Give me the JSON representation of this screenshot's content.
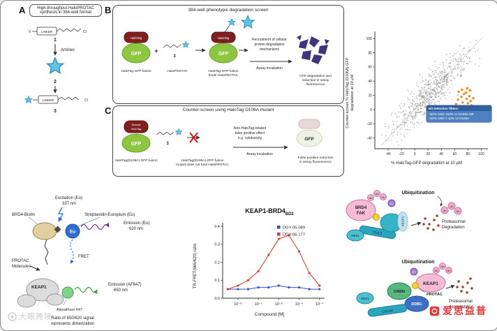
{
  "colors": {
    "gfp_green": "#8dc63f",
    "halotag_red": "#7f1f1f",
    "star_blue": "#5fc4e8",
    "hit_orange": "#f08a1d",
    "accent_blue": "#2a6fd6",
    "emission_purple": "#7b2d8e",
    "emission_green": "#2e9e44",
    "pink": "#f5bcd3",
    "teal": "#35b4c8",
    "protac_yellow": "#f7d02e",
    "degraded_purple": "#3d3580"
  },
  "watermark": {
    "left_text": "大眼跨境",
    "right_text": "爱思益普"
  },
  "panelA": {
    "label": "A",
    "title_line1": "High-throughput HaloPROTAC",
    "title_line2": "synthesis in 384-well format",
    "x_label": "X",
    "linker": "LINKER",
    "cl": "Cl",
    "compound1": "1",
    "amines": "Amines",
    "compound2": "2",
    "compound3": "3"
  },
  "panelB": {
    "label": "B",
    "title": "384-well phenotypic degradation screen",
    "halotag": "HaloTag",
    "gfp": "GFP",
    "caption1": "HaloTag-GFP fusion",
    "plus": "+",
    "compound3": "3",
    "caption2": "HaloPROTAC",
    "caption3_line1": "HaloTag-GFP fusion",
    "caption3_line2": "binds HaloPROTAC",
    "recruit_line1": "Recruitment of cellular",
    "recruit_line2": "protein degradation",
    "recruit_line3": "mechanisms",
    "assay": "Assay incubation",
    "result_line1": "GFP degradation and",
    "result_line2": "reduction in assay",
    "result_line3": "fluorescence"
  },
  "panelC": {
    "label": "C",
    "title": "Counter-screen using HaloTag D106A mutant",
    "mutant_line1": "Mutant",
    "mutant_line2": "HaloTag",
    "gfp": "GFP",
    "caption1": "HaloTag(D106A)-GFP fusion",
    "compound3": "3",
    "caption2_line1": "HaloTag(D106A)-GFP fusion",
    "caption2_line2": "mutant does not bind HaloPROTAC",
    "fp_line1": "Non-HaloTag-related",
    "fp_line2": "false positive effect",
    "fp_line3": "e.g. cytotoxicity",
    "assay": "Assay incubation",
    "result_line1": "False positive reduction",
    "result_line2": "in assay fluorescence"
  },
  "fret": {
    "excitation_line1": "Excitation (Eu)",
    "excitation_line2": "337 nm",
    "brd4_biotin": "BRD4-Biotin",
    "streptavidin": "Streptavidin-Europium (Eu)",
    "eu": "Eu",
    "emission_eu_line1": "Emission (Eu)",
    "emission_eu_line2": "620 nm",
    "fret": "FRET",
    "protac_line1": "PROTAC",
    "protac_line2": "Molecules",
    "keap1": "KEAP1",
    "af647": "AlexaFluor 647",
    "emission_af_line1": "Emission (AF647)",
    "emission_af_line2": "650 nm",
    "caption_line1": "Ratio of 650/620 signal",
    "caption_line2": "represents dimerization"
  },
  "ubiq": {
    "top": {
      "heading": "Ubiquitination",
      "ub": "Ub",
      "target_line1": "BRD4",
      "target_line2": "FAK",
      "protac": "PROTAC",
      "e2": "E2",
      "keap1": "KEAP1",
      "cul3": "CUL3",
      "rbx1": "RBX1",
      "deg_line1": "Proteasomal",
      "deg_line2": "Degradation"
    },
    "bottom": {
      "heading": "Ubiquitination",
      "ub": "Ub",
      "target": "KEAP1",
      "protac": "PROTAC",
      "e2": "E2",
      "crbn": "CRBN",
      "ddb1": "DDB1",
      "cul4a": "CUL4A",
      "rbx1": "RBX1",
      "deg_line1": "Proteasomal",
      "deg_line2": "degradation"
    }
  },
  "chart_data": [
    {
      "id": "counter-screen-scatter",
      "type": "scatter",
      "xlabel": "% HaloTag-GFP degradation at 10 µM",
      "ylabel_line1": "Counter-screen % HaloTag (D106A)-GFP",
      "ylabel_line2": "degradation at 10 µM",
      "xlim": [
        -60,
        110
      ],
      "ylim": [
        -55,
        110
      ],
      "xticks": [
        -40,
        -20,
        0,
        20,
        40,
        60,
        80,
        100
      ],
      "yticks": [
        -40,
        -20,
        0,
        20,
        40,
        60,
        80,
        100
      ],
      "diagonal": true,
      "point_color": "#8a8a8a",
      "hit_color": "#f08a1d",
      "cloud": {
        "n": 650,
        "seed": 12,
        "center_mean": 28,
        "center_sd": 26,
        "x_sd": 9,
        "y_sd": 11,
        "min": -50,
        "max": 102
      },
      "hit_points": [
        [
          62,
          8
        ],
        [
          65,
          14
        ],
        [
          68,
          5
        ],
        [
          70,
          18
        ],
        [
          72,
          10
        ],
        [
          74,
          22
        ],
        [
          76,
          3
        ],
        [
          78,
          15
        ],
        [
          80,
          9
        ],
        [
          82,
          19
        ],
        [
          84,
          12
        ],
        [
          66,
          25
        ],
        [
          71,
          28
        ],
        [
          77,
          24
        ],
        [
          85,
          6
        ],
        [
          88,
          16
        ],
        [
          79,
          30
        ],
        [
          83,
          27
        ]
      ],
      "filter_box": {
        "title": "Hit Selection filters:",
        "line1": ">50% AND <50% vs D106A  OR",
        "line2": ">40% AND < 40% vs D106A",
        "header_bg": "#2e5f9e",
        "body_bg": "#4e7fc0"
      }
    },
    {
      "id": "keap1-brd4-trfret",
      "type": "line",
      "title_main": "KEAP1-BRD4",
      "title_sub": "BD2",
      "xlabel": "Compound [M]",
      "ylabel": "TR-FRET(665/620) ratio",
      "x_exponents": [
        -8.5,
        -8,
        -7.5,
        -7,
        -6.5,
        -6,
        -5.5,
        -5,
        -4.5,
        -4
      ],
      "xtick_exponents": [
        -8,
        -7,
        -6,
        -5,
        -4
      ],
      "ylim": [
        0,
        0.4
      ],
      "yticks": [
        0,
        0.1,
        0.2,
        0.3,
        0.4
      ],
      "series": [
        {
          "name": "DGY-05-089",
          "color": "#2b50c8",
          "values": [
            0.05,
            0.05,
            0.05,
            0.06,
            0.06,
            0.07,
            0.06,
            0.06,
            0.05,
            0.05
          ]
        },
        {
          "name": "DGY-06-177",
          "color": "#e0332e",
          "values": [
            0.05,
            0.07,
            0.1,
            0.15,
            0.24,
            0.33,
            0.35,
            0.26,
            0.14,
            0.07
          ]
        }
      ]
    }
  ]
}
